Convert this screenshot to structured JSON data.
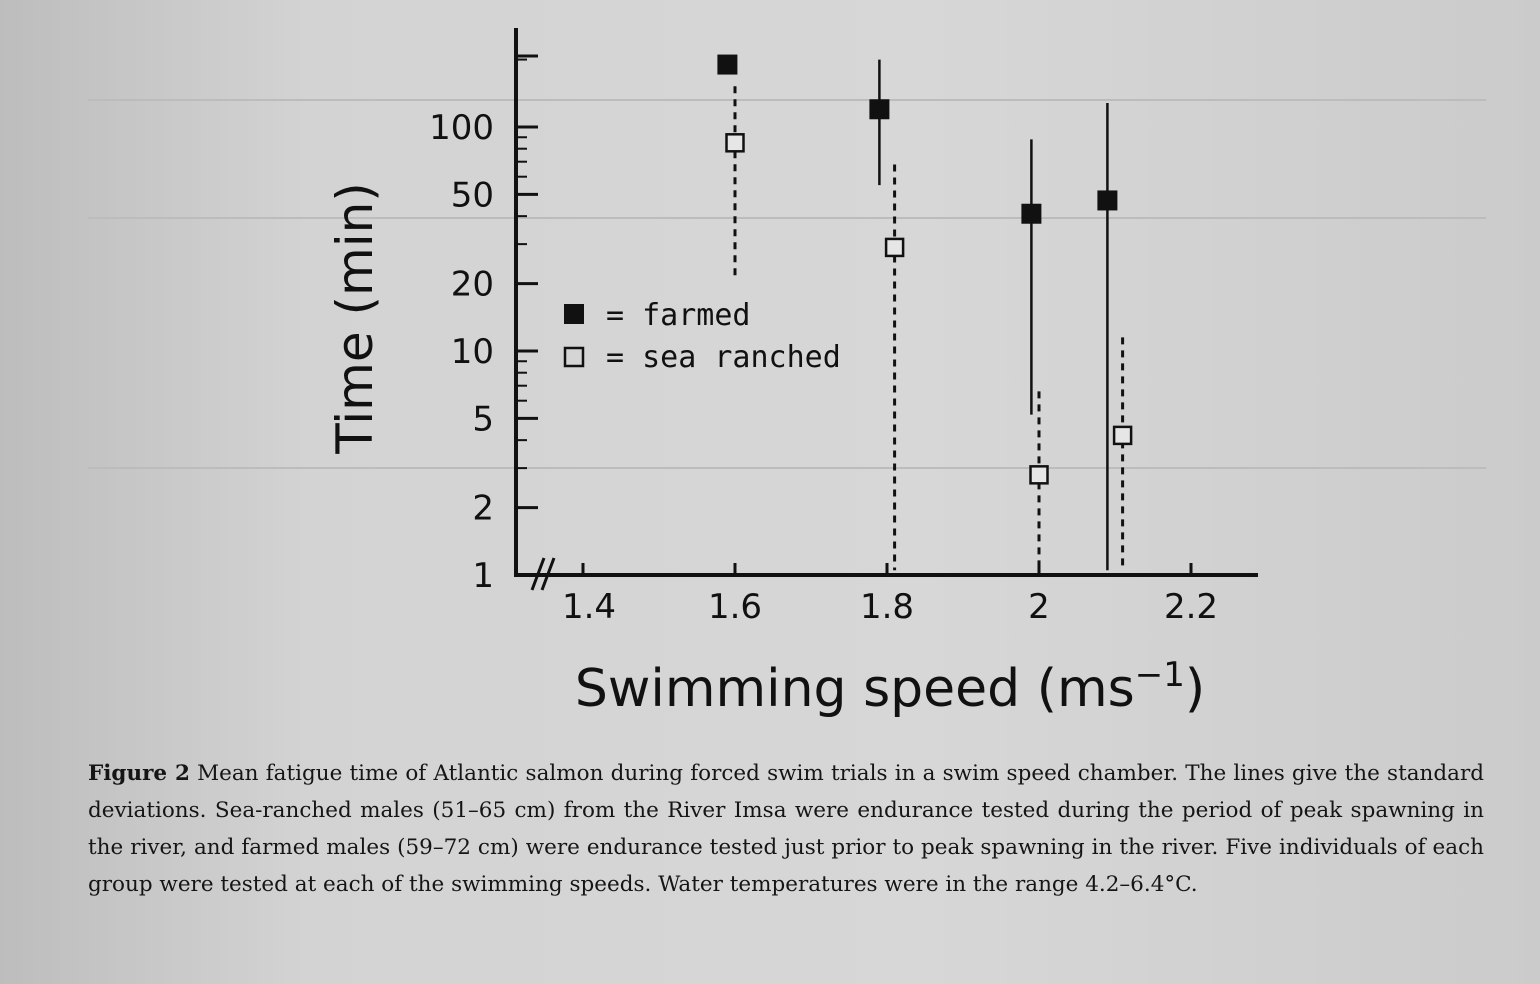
{
  "chart_data": {
    "type": "scatter",
    "xlabel": "Swimming speed",
    "xlabel_unit": "(ms",
    "xlabel_unit_exp": "−1",
    "xlabel_unit_close": ")",
    "ylabel": "Time (min)",
    "y_scale": "log",
    "xlim": [
      1.3,
      2.3
    ],
    "ylim": [
      1,
      250
    ],
    "x_ticks": [
      "1.4",
      "1.6",
      "1.8",
      "2",
      "2.2"
    ],
    "y_ticks": [
      "1",
      "2",
      "5",
      "10",
      "20",
      "50",
      "100"
    ],
    "legend_position": "center-left",
    "series": [
      {
        "name": "farmed",
        "legend_symbol": "■",
        "marker": "filled-square",
        "error_line": "solid",
        "color": "#111111",
        "points": [
          {
            "x": 1.59,
            "y": 190,
            "err_low": 190,
            "err_high": 190
          },
          {
            "x": 1.79,
            "y": 120,
            "err_low": 55,
            "err_high": 200
          },
          {
            "x": 1.99,
            "y": 41,
            "err_low": 5.2,
            "err_high": 88
          },
          {
            "x": 2.09,
            "y": 47,
            "err_low": 1.05,
            "err_high": 128
          }
        ]
      },
      {
        "name": "sea ranched",
        "legend_symbol": "□",
        "marker": "open-square",
        "error_line": "dashed",
        "color": "#111111",
        "points": [
          {
            "x": 1.6,
            "y": 85,
            "err_low": 21,
            "err_high": 152
          },
          {
            "x": 1.81,
            "y": 29,
            "err_low": 1.05,
            "err_high": 68
          },
          {
            "x": 2.0,
            "y": 2.8,
            "err_low": 1.05,
            "err_high": 6.6
          },
          {
            "x": 2.11,
            "y": 4.2,
            "err_low": 1.05,
            "err_high": 11.5
          }
        ]
      }
    ]
  },
  "caption": {
    "label": "Figure 2",
    "text": "Mean fatigue time of Atlantic salmon during forced swim trials in a swim speed chamber. The lines give the standard deviations. Sea-ranched males (51–65 cm) from the River Imsa were endurance tested during the period of peak spawning in the river, and farmed males (59–72 cm) were endurance tested just prior to peak spawning in the river. Five individuals of each group were tested at each of the swimming speeds. Water temperatures were in the range 4.2–6.4°C."
  }
}
